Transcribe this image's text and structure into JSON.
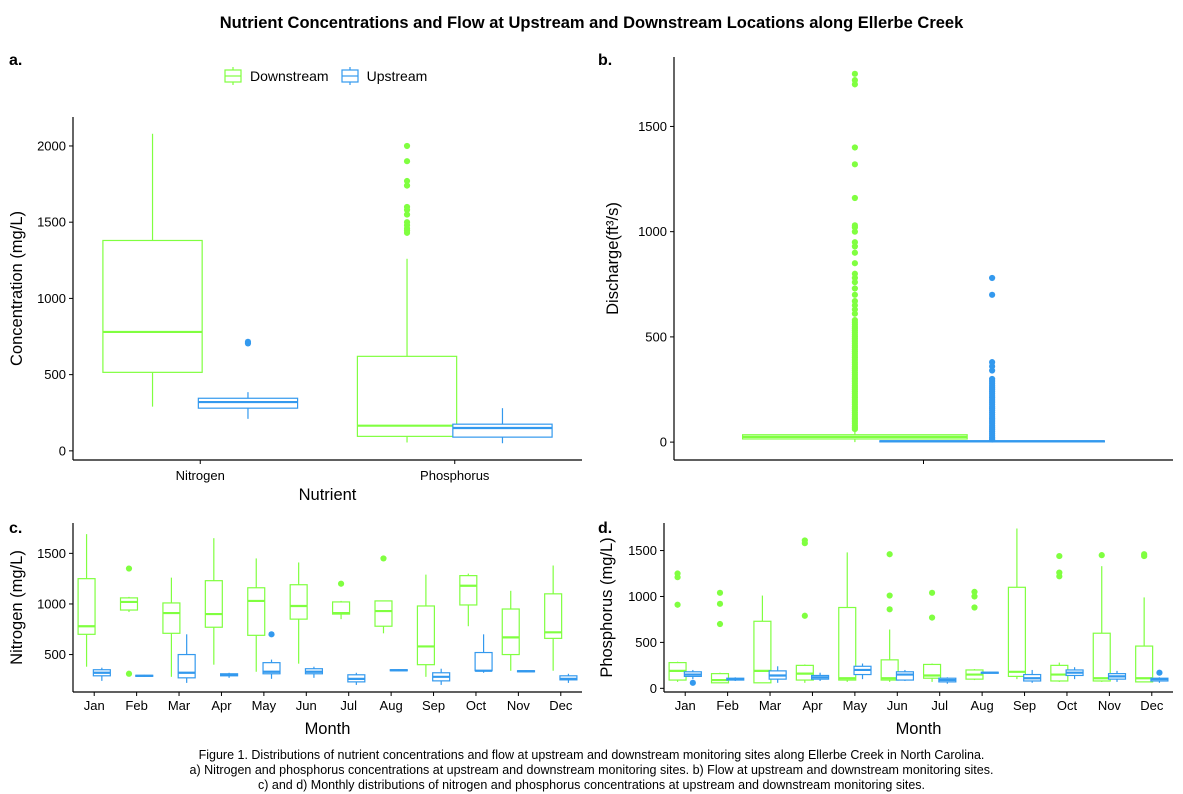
{
  "title": "Nutrient Concentrations and Flow at Upstream and Downstream Locations along Ellerbe Creek",
  "panel_labels": [
    "a.",
    "b.",
    "c.",
    "d."
  ],
  "legend": [
    {
      "label": "Downstream",
      "color": "#80FF40"
    },
    {
      "label": "Upstream",
      "color": "#3399EE"
    }
  ],
  "caption": [
    "Figure 1. Distributions of nutrient concentrations and flow at upstream and downstream monitoring sites along Ellerbe Creek in North Carolina.",
    "a) Nitrogen and phosphorus concentrations at upstream and downstream monitoring sites. b) Flow at upstream and downstream monitoring sites.",
    "c) and d) Monthly distributions of nitrogen and phosphorus concentrations at upstream and downstream monitoring sites."
  ],
  "colors": {
    "downstream": "#80FF40",
    "upstream": "#3399EE"
  },
  "chart_data": [
    {
      "id": "a",
      "type": "boxplot",
      "xlabel": "Nutrient",
      "ylabel": "Concentration (mg/L)",
      "categories": [
        "Nitrogen",
        "Phosphorus"
      ],
      "ylim": [
        -60,
        2190
      ],
      "yticks": [
        0,
        500,
        1000,
        1500,
        2000
      ],
      "series": [
        {
          "name": "Downstream",
          "boxes": [
            {
              "min": 290,
              "q1": 515,
              "median": 780,
              "q3": 1380,
              "max": 2080,
              "outliers": []
            },
            {
              "min": 55,
              "q1": 95,
              "median": 165,
              "q3": 620,
              "max": 1260,
              "outliers": [
                1430,
                1445,
                1460,
                1480,
                1500,
                1550,
                1580,
                1600,
                1740,
                1770,
                1900,
                2000
              ]
            }
          ]
        },
        {
          "name": "Upstream",
          "boxes": [
            {
              "min": 210,
              "q1": 280,
              "median": 320,
              "q3": 345,
              "max": 385,
              "outliers": [
                705,
                715
              ]
            },
            {
              "min": 50,
              "q1": 90,
              "median": 150,
              "q3": 175,
              "max": 280,
              "outliers": []
            }
          ]
        }
      ]
    },
    {
      "id": "b",
      "type": "boxplot",
      "xlabel": "",
      "ylabel": "Discharge(ft³/s)",
      "categories": [
        ""
      ],
      "ylim": [
        -85,
        1830
      ],
      "yticks": [
        0,
        500,
        1000,
        1500
      ],
      "series": [
        {
          "name": "Downstream",
          "boxes": [
            {
              "min": 0,
              "q1": 15,
              "median": 25,
              "q3": 35,
              "max": 60,
              "outliers": [
                62,
                70,
                80,
                90,
                100,
                110,
                120,
                130,
                140,
                150,
                160,
                170,
                180,
                190,
                200,
                210,
                220,
                230,
                240,
                250,
                260,
                270,
                280,
                290,
                300,
                310,
                320,
                330,
                340,
                350,
                360,
                370,
                380,
                390,
                400,
                410,
                420,
                430,
                440,
                450,
                460,
                470,
                480,
                490,
                500,
                510,
                520,
                530,
                540,
                550,
                560,
                570,
                580,
                610,
                630,
                650,
                670,
                700,
                730,
                760,
                780,
                800,
                850,
                900,
                930,
                950,
                1000,
                1020,
                1030,
                1160,
                1320,
                1400,
                1700,
                1720,
                1750
              ]
            }
          ]
        },
        {
          "name": "Upstream",
          "boxes": [
            {
              "min": 0,
              "q1": 2,
              "median": 4,
              "q3": 6,
              "max": 10,
              "outliers": [
                12,
                20,
                30,
                40,
                50,
                60,
                70,
                80,
                90,
                100,
                110,
                120,
                130,
                140,
                150,
                160,
                170,
                180,
                190,
                200,
                210,
                220,
                230,
                240,
                250,
                260,
                270,
                280,
                290,
                300,
                340,
                360,
                380,
                700,
                780
              ]
            }
          ]
        }
      ]
    },
    {
      "id": "c",
      "type": "boxplot",
      "xlabel": "Month",
      "ylabel": "Nitrogen (mg/L)",
      "categories": [
        "Jan",
        "Feb",
        "Mar",
        "Apr",
        "May",
        "Jun",
        "Jul",
        "Aug",
        "Sep",
        "Oct",
        "Nov",
        "Dec"
      ],
      "ylim": [
        130,
        1800
      ],
      "yticks": [
        500,
        1000,
        1500
      ],
      "series": [
        {
          "name": "Downstream",
          "boxes": [
            {
              "min": 380,
              "q1": 700,
              "median": 780,
              "q3": 1250,
              "max": 1690,
              "outliers": []
            },
            {
              "min": 920,
              "q1": 940,
              "median": 1020,
              "q3": 1060,
              "max": 1070,
              "outliers": [
                310,
                1350
              ]
            },
            {
              "min": 280,
              "q1": 710,
              "median": 910,
              "q3": 1010,
              "max": 1260,
              "outliers": []
            },
            {
              "min": 400,
              "q1": 770,
              "median": 900,
              "q3": 1230,
              "max": 1650,
              "outliers": []
            },
            {
              "min": 330,
              "q1": 690,
              "median": 1030,
              "q3": 1160,
              "max": 1450,
              "outliers": []
            },
            {
              "min": 410,
              "q1": 850,
              "median": 980,
              "q3": 1190,
              "max": 1410,
              "outliers": []
            },
            {
              "min": 850,
              "q1": 900,
              "median": 910,
              "q3": 1020,
              "max": 1030,
              "outliers": [
                1200
              ]
            },
            {
              "min": 710,
              "q1": 780,
              "median": 930,
              "q3": 1030,
              "max": 1030,
              "outliers": [
                1450
              ]
            },
            {
              "min": 280,
              "q1": 400,
              "median": 580,
              "q3": 980,
              "max": 1290,
              "outliers": []
            },
            {
              "min": 780,
              "q1": 990,
              "median": 1180,
              "q3": 1280,
              "max": 1300,
              "outliers": []
            },
            {
              "min": 340,
              "q1": 500,
              "median": 670,
              "q3": 950,
              "max": 1130,
              "outliers": []
            },
            {
              "min": 340,
              "q1": 660,
              "median": 720,
              "q3": 1100,
              "max": 1380,
              "outliers": []
            }
          ]
        },
        {
          "name": "Upstream",
          "boxes": [
            {
              "min": 240,
              "q1": 290,
              "median": 320,
              "q3": 350,
              "max": 370,
              "outliers": []
            },
            {
              "min": 280,
              "q1": 285,
              "median": 290,
              "q3": 295,
              "max": 300,
              "outliers": []
            },
            {
              "min": 220,
              "q1": 270,
              "median": 320,
              "q3": 500,
              "max": 700,
              "outliers": []
            },
            {
              "min": 270,
              "q1": 290,
              "median": 300,
              "q3": 310,
              "max": 320,
              "outliers": []
            },
            {
              "min": 260,
              "q1": 310,
              "median": 330,
              "q3": 420,
              "max": 450,
              "outliers": [
                700
              ]
            },
            {
              "min": 270,
              "q1": 310,
              "median": 330,
              "q3": 360,
              "max": 380,
              "outliers": []
            },
            {
              "min": 200,
              "q1": 230,
              "median": 260,
              "q3": 300,
              "max": 320,
              "outliers": []
            },
            {
              "min": 335,
              "q1": 340,
              "median": 345,
              "q3": 350,
              "max": 355,
              "outliers": []
            },
            {
              "min": 200,
              "q1": 240,
              "median": 280,
              "q3": 320,
              "max": 360,
              "outliers": []
            },
            {
              "min": 320,
              "q1": 340,
              "median": 340,
              "q3": 520,
              "max": 700,
              "outliers": []
            },
            {
              "min": 325,
              "q1": 330,
              "median": 335,
              "q3": 340,
              "max": 345,
              "outliers": []
            },
            {
              "min": 220,
              "q1": 250,
              "median": 260,
              "q3": 290,
              "max": 310,
              "outliers": []
            }
          ]
        }
      ]
    },
    {
      "id": "d",
      "type": "boxplot",
      "xlabel": "Month",
      "ylabel": "Phosphorus (mg/L)",
      "categories": [
        "Jan",
        "Feb",
        "Mar",
        "Apr",
        "May",
        "Jun",
        "Jul",
        "Aug",
        "Sep",
        "Oct",
        "Nov",
        "Dec"
      ],
      "ylim": [
        -40,
        1800
      ],
      "yticks": [
        0,
        500,
        1000,
        1500
      ],
      "series": [
        {
          "name": "Downstream",
          "boxes": [
            {
              "min": 70,
              "q1": 90,
              "median": 190,
              "q3": 280,
              "max": 290,
              "outliers": [
                910,
                1210,
                1250
              ]
            },
            {
              "min": 60,
              "q1": 60,
              "median": 90,
              "q3": 160,
              "max": 170,
              "outliers": [
                700,
                920,
                1040
              ]
            },
            {
              "min": 60,
              "q1": 60,
              "median": 190,
              "q3": 730,
              "max": 1010,
              "outliers": []
            },
            {
              "min": 60,
              "q1": 90,
              "median": 160,
              "q3": 250,
              "max": 260,
              "outliers": [
                790,
                1580,
                1610
              ]
            },
            {
              "min": 70,
              "q1": 90,
              "median": 110,
              "q3": 880,
              "max": 1480,
              "outliers": []
            },
            {
              "min": 70,
              "q1": 90,
              "median": 110,
              "q3": 310,
              "max": 640,
              "outliers": [
                860,
                1010,
                1460
              ]
            },
            {
              "min": 70,
              "q1": 110,
              "median": 140,
              "q3": 260,
              "max": 270,
              "outliers": [
                770,
                1040
              ]
            },
            {
              "min": 90,
              "q1": 100,
              "median": 150,
              "q3": 200,
              "max": 210,
              "outliers": [
                880,
                1000,
                1050
              ]
            },
            {
              "min": 100,
              "q1": 130,
              "median": 180,
              "q3": 1100,
              "max": 1740,
              "outliers": []
            },
            {
              "min": 70,
              "q1": 80,
              "median": 150,
              "q3": 250,
              "max": 280,
              "outliers": [
                1220,
                1260,
                1440
              ]
            },
            {
              "min": 70,
              "q1": 80,
              "median": 110,
              "q3": 600,
              "max": 1330,
              "outliers": [
                1450
              ]
            },
            {
              "min": 70,
              "q1": 70,
              "median": 110,
              "q3": 460,
              "max": 990,
              "outliers": [
                1440,
                1460
              ]
            }
          ]
        },
        {
          "name": "Upstream",
          "boxes": [
            {
              "min": 100,
              "q1": 130,
              "median": 150,
              "q3": 180,
              "max": 200,
              "outliers": [
                60
              ]
            },
            {
              "min": 80,
              "q1": 90,
              "median": 100,
              "q3": 110,
              "max": 120,
              "outliers": []
            },
            {
              "min": 60,
              "q1": 100,
              "median": 140,
              "q3": 190,
              "max": 240,
              "outliers": []
            },
            {
              "min": 80,
              "q1": 100,
              "median": 120,
              "q3": 140,
              "max": 170,
              "outliers": []
            },
            {
              "min": 100,
              "q1": 150,
              "median": 200,
              "q3": 240,
              "max": 270,
              "outliers": []
            },
            {
              "min": 80,
              "q1": 90,
              "median": 150,
              "q3": 180,
              "max": 200,
              "outliers": []
            },
            {
              "min": 50,
              "q1": 70,
              "median": 90,
              "q3": 110,
              "max": 120,
              "outliers": []
            },
            {
              "min": 160,
              "q1": 165,
              "median": 170,
              "q3": 175,
              "max": 180,
              "outliers": []
            },
            {
              "min": 60,
              "q1": 80,
              "median": 110,
              "q3": 150,
              "max": 200,
              "outliers": []
            },
            {
              "min": 100,
              "q1": 140,
              "median": 170,
              "q3": 200,
              "max": 230,
              "outliers": []
            },
            {
              "min": 70,
              "q1": 100,
              "median": 130,
              "q3": 160,
              "max": 190,
              "outliers": []
            },
            {
              "min": 60,
              "q1": 80,
              "median": 100,
              "q3": 110,
              "max": 120,
              "outliers": [
                170
              ]
            }
          ]
        }
      ]
    }
  ]
}
